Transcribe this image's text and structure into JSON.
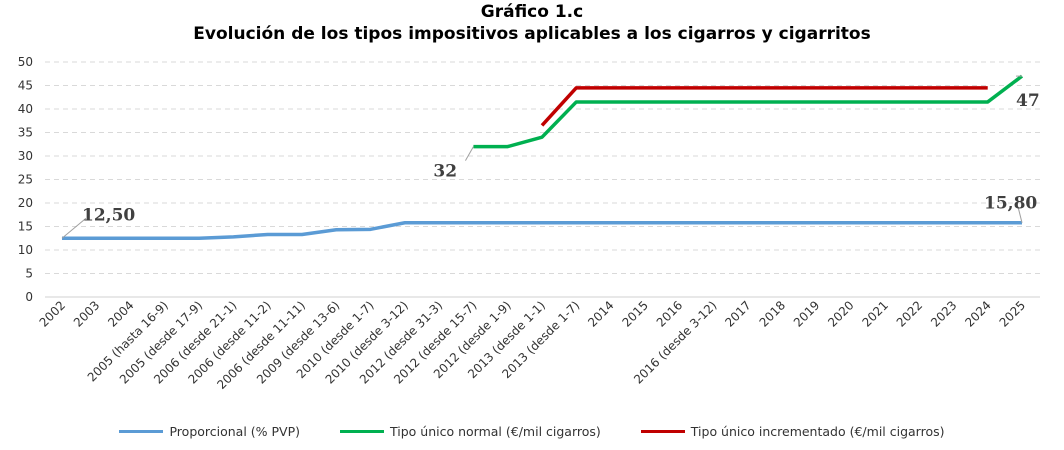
{
  "chart_data": {
    "type": "line",
    "title": "Gráfico 1.c",
    "subtitle": "Evolución de los tipos impositivos aplicables a los cigarros y cigarritos",
    "categories": [
      "2002",
      "2003",
      "2004",
      "2005 (hasta 16-9)",
      "2005 (desde 17-9)",
      "2006 (desde 21-1)",
      "2006 (desde 11-2)",
      "2006 (desde 11-11)",
      "2009 (desde 13-6)",
      "2010 (desde 1-7)",
      "2010 (desde 3-12)",
      "2012 (desde 31-3)",
      "2012 (desde 15-7)",
      "2012 (desde 1-9)",
      "2013 (desde 1-1)",
      "2013 (desde 1-7)",
      "2014",
      "2015",
      "2016",
      "2016 (desde 3-12)",
      "2017",
      "2018",
      "2019",
      "2020",
      "2021",
      "2022",
      "2023",
      "2024",
      "2025"
    ],
    "ylim": [
      0,
      50
    ],
    "yticks": [
      0,
      5,
      10,
      15,
      20,
      25,
      30,
      35,
      40,
      45,
      50
    ],
    "grid": true,
    "legend_position": "bottom",
    "series": [
      {
        "name": "Proporcional (% PVP)",
        "color": "#5B9BD5",
        "values": [
          12.5,
          12.5,
          12.5,
          12.5,
          12.5,
          12.8,
          13.3,
          13.3,
          14.3,
          14.4,
          15.8,
          15.8,
          15.8,
          15.8,
          15.8,
          15.8,
          15.8,
          15.8,
          15.8,
          15.8,
          15.8,
          15.8,
          15.8,
          15.8,
          15.8,
          15.8,
          15.8,
          15.8,
          15.8
        ]
      },
      {
        "name": "Tipo único normal (€/mil cigarros)",
        "color": "#00B050",
        "values": [
          null,
          null,
          null,
          null,
          null,
          null,
          null,
          null,
          null,
          null,
          null,
          null,
          32,
          32,
          34,
          41.5,
          41.5,
          41.5,
          41.5,
          41.5,
          41.5,
          41.5,
          41.5,
          41.5,
          41.5,
          41.5,
          41.5,
          41.5,
          47
        ]
      },
      {
        "name": "Tipo único incrementado (€/mil cigarros)",
        "color": "#C00000",
        "values": [
          null,
          null,
          null,
          null,
          null,
          null,
          null,
          null,
          null,
          null,
          null,
          null,
          null,
          null,
          36.5,
          44.5,
          44.5,
          44.5,
          44.5,
          44.5,
          44.5,
          44.5,
          44.5,
          44.5,
          44.5,
          44.5,
          44.5,
          44.5,
          null
        ]
      }
    ],
    "annotations": [
      {
        "text": "12,50",
        "series": 0,
        "index": 0
      },
      {
        "text": "15,80",
        "series": 0,
        "index": 28
      },
      {
        "text": "32",
        "series": 1,
        "index": 12
      },
      {
        "text": "47",
        "series": 1,
        "index": 28
      }
    ]
  }
}
